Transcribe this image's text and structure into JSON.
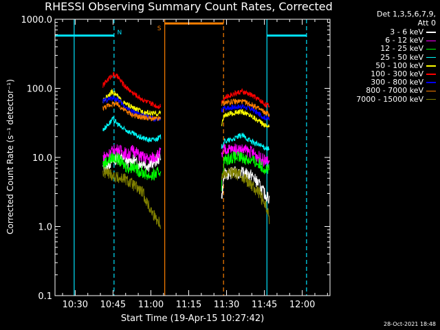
{
  "chart_data": {
    "type": "line",
    "title": "RHESSI Observing Summary Count Rates, Corrected",
    "xlabel": "Start Time (19-Apr-15 10:27:42)",
    "ylabel": "Corrected Count Rate (s⁻¹ detector⁻¹)",
    "y_scale": "log",
    "ylim": [
      0.1,
      1000
    ],
    "xlim_minutes": [
      622,
      731
    ],
    "x_ticks": [
      {
        "label": "10:30",
        "minute": 630
      },
      {
        "label": "10:45",
        "minute": 645
      },
      {
        "label": "11:00",
        "minute": 660
      },
      {
        "label": "11:15",
        "minute": 675
      },
      {
        "label": "11:30",
        "minute": 690
      },
      {
        "label": "11:45",
        "minute": 705
      },
      {
        "label": "12:00",
        "minute": 720
      }
    ],
    "y_ticks": [
      {
        "label": "1000.0",
        "value": 1000
      },
      {
        "label": "100.0",
        "value": 100
      },
      {
        "label": "10.0",
        "value": 10
      },
      {
        "label": "1.0",
        "value": 1
      },
      {
        "label": "0.1",
        "value": 0.1
      }
    ],
    "legend_header": [
      "Det 1,3,5,6,7,9,",
      "Att 0"
    ],
    "annotations": [
      {
        "text": "N",
        "color": "#00e5ff"
      },
      {
        "text": "S",
        "color": "#ff8000"
      }
    ],
    "event_lines": [
      {
        "minute": 629.6,
        "color": "#00e5ff",
        "style": "solid"
      },
      {
        "minute": 645.4,
        "color": "#00e5ff",
        "style": "dashed"
      },
      {
        "minute": 665.5,
        "color": "#ff8000",
        "style": "solid"
      },
      {
        "minute": 688.8,
        "color": "#ff8000",
        "style": "dashed"
      },
      {
        "minute": 706.0,
        "color": "#00e5ff",
        "style": "solid"
      },
      {
        "minute": 721.7,
        "color": "#00e5ff",
        "style": "dashed"
      }
    ],
    "flag_bars": [
      {
        "start": 622,
        "end": 645.4,
        "value": 580,
        "color": "#00e5ff"
      },
      {
        "start": 706.0,
        "end": 721.7,
        "value": 580,
        "color": "#00e5ff"
      },
      {
        "start": 665.5,
        "end": 688.8,
        "value": 870,
        "color": "#ff8000"
      }
    ],
    "segments": [
      [
        641,
        664
      ],
      [
        688,
        707
      ]
    ],
    "series": [
      {
        "name": "3 - 6 keV",
        "color": "#ffffff",
        "points": [
          [
            641,
            7
          ],
          [
            643,
            8
          ],
          [
            645,
            9
          ],
          [
            647,
            10
          ],
          [
            649,
            9.5
          ],
          [
            651,
            8.5
          ],
          [
            653,
            9
          ],
          [
            655,
            8
          ],
          [
            657,
            8.5
          ],
          [
            659,
            7.5
          ],
          [
            661,
            8.5
          ],
          [
            663,
            9.5
          ],
          [
            664,
            11
          ],
          [
            688,
            2.5
          ],
          [
            689,
            5.5
          ],
          [
            692,
            6
          ],
          [
            696,
            6
          ],
          [
            700,
            5.5
          ],
          [
            703,
            4
          ],
          [
            705,
            3
          ],
          [
            707,
            2.5
          ]
        ]
      },
      {
        "name": "6 - 12 keV",
        "color": "#ff00ff",
        "points": [
          [
            641,
            10
          ],
          [
            643,
            11
          ],
          [
            645,
            12.5
          ],
          [
            647,
            13
          ],
          [
            649,
            12
          ],
          [
            651,
            11
          ],
          [
            653,
            13
          ],
          [
            655,
            11
          ],
          [
            657,
            10
          ],
          [
            659,
            9.5
          ],
          [
            661,
            10
          ],
          [
            663,
            11
          ],
          [
            664,
            12
          ],
          [
            688,
            10
          ],
          [
            689,
            13
          ],
          [
            692,
            13
          ],
          [
            696,
            13
          ],
          [
            700,
            12
          ],
          [
            703,
            10
          ],
          [
            705,
            9
          ],
          [
            707,
            8.5
          ]
        ]
      },
      {
        "name": "12 - 25 keV",
        "color": "#00ff00",
        "points": [
          [
            641,
            8
          ],
          [
            643,
            9
          ],
          [
            645,
            10
          ],
          [
            647,
            9.5
          ],
          [
            649,
            8
          ],
          [
            651,
            7
          ],
          [
            653,
            7.5
          ],
          [
            655,
            6.5
          ],
          [
            657,
            6
          ],
          [
            659,
            5.5
          ],
          [
            661,
            5.5
          ],
          [
            663,
            6
          ],
          [
            664,
            6.5
          ],
          [
            688,
            4
          ],
          [
            689,
            9
          ],
          [
            692,
            10
          ],
          [
            696,
            10
          ],
          [
            700,
            9
          ],
          [
            703,
            8
          ],
          [
            705,
            7
          ],
          [
            707,
            6.5
          ]
        ]
      },
      {
        "name": "25 - 50 keV",
        "color": "#00ffff",
        "points": [
          [
            641,
            25
          ],
          [
            643,
            30
          ],
          [
            645,
            36
          ],
          [
            647,
            30
          ],
          [
            649,
            26
          ],
          [
            651,
            24
          ],
          [
            653,
            22
          ],
          [
            655,
            20
          ],
          [
            657,
            19
          ],
          [
            659,
            18
          ],
          [
            661,
            18
          ],
          [
            663,
            19
          ],
          [
            664,
            20
          ],
          [
            688,
            14
          ],
          [
            689,
            17
          ],
          [
            692,
            18
          ],
          [
            696,
            21
          ],
          [
            700,
            17
          ],
          [
            703,
            15
          ],
          [
            705,
            14
          ],
          [
            707,
            13
          ]
        ]
      },
      {
        "name": "50 - 100 keV",
        "color": "#ffff00",
        "points": [
          [
            641,
            65
          ],
          [
            643,
            80
          ],
          [
            645,
            90
          ],
          [
            647,
            75
          ],
          [
            649,
            62
          ],
          [
            651,
            57
          ],
          [
            653,
            52
          ],
          [
            655,
            48
          ],
          [
            657,
            46
          ],
          [
            659,
            44
          ],
          [
            661,
            43
          ],
          [
            663,
            43
          ],
          [
            664,
            45
          ],
          [
            688,
            30
          ],
          [
            689,
            40
          ],
          [
            692,
            43
          ],
          [
            696,
            46
          ],
          [
            700,
            40
          ],
          [
            703,
            33
          ],
          [
            705,
            30
          ],
          [
            707,
            28
          ]
        ]
      },
      {
        "name": "100 - 300 keV",
        "color": "#ff0000",
        "points": [
          [
            641,
            110
          ],
          [
            643,
            135
          ],
          [
            645,
            160
          ],
          [
            647,
            145
          ],
          [
            649,
            115
          ],
          [
            651,
            98
          ],
          [
            653,
            85
          ],
          [
            655,
            76
          ],
          [
            657,
            68
          ],
          [
            659,
            62
          ],
          [
            661,
            58
          ],
          [
            663,
            55
          ],
          [
            664,
            57
          ],
          [
            688,
            63
          ],
          [
            689,
            72
          ],
          [
            692,
            82
          ],
          [
            696,
            90
          ],
          [
            700,
            80
          ],
          [
            703,
            68
          ],
          [
            705,
            60
          ],
          [
            707,
            55
          ]
        ]
      },
      {
        "name": "300 - 800 keV",
        "color": "#0000ff",
        "points": [
          [
            641,
            65
          ],
          [
            643,
            70
          ],
          [
            645,
            72
          ],
          [
            647,
            68
          ],
          [
            649,
            58
          ],
          [
            651,
            50
          ],
          [
            653,
            45
          ],
          [
            655,
            42
          ],
          [
            657,
            40
          ],
          [
            659,
            38
          ],
          [
            661,
            36
          ],
          [
            663,
            35
          ],
          [
            664,
            36
          ],
          [
            688,
            48
          ],
          [
            689,
            52
          ],
          [
            692,
            53
          ],
          [
            696,
            55
          ],
          [
            700,
            50
          ],
          [
            703,
            42
          ],
          [
            705,
            38
          ],
          [
            707,
            36
          ]
        ]
      },
      {
        "name": "800 - 7000 keV",
        "color": "#ff8000",
        "points": [
          [
            641,
            52
          ],
          [
            643,
            56
          ],
          [
            645,
            60
          ],
          [
            647,
            58
          ],
          [
            649,
            50
          ],
          [
            651,
            45
          ],
          [
            653,
            41
          ],
          [
            655,
            39
          ],
          [
            657,
            38
          ],
          [
            659,
            37
          ],
          [
            661,
            36
          ],
          [
            663,
            36
          ],
          [
            664,
            37
          ],
          [
            688,
            60
          ],
          [
            689,
            62
          ],
          [
            692,
            64
          ],
          [
            696,
            65
          ],
          [
            700,
            58
          ],
          [
            703,
            50
          ],
          [
            705,
            45
          ],
          [
            707,
            42
          ]
        ]
      },
      {
        "name": "7000 - 15000 keV",
        "color": "#808000",
        "points": [
          [
            641,
            6
          ],
          [
            643,
            6
          ],
          [
            645,
            5.5
          ],
          [
            647,
            5
          ],
          [
            649,
            5
          ],
          [
            651,
            4.5
          ],
          [
            653,
            4
          ],
          [
            655,
            3.5
          ],
          [
            657,
            3
          ],
          [
            659,
            2
          ],
          [
            661,
            1.5
          ],
          [
            663,
            1.2
          ],
          [
            664,
            1.1
          ],
          [
            688,
            5
          ],
          [
            689,
            6
          ],
          [
            692,
            6
          ],
          [
            696,
            5.5
          ],
          [
            700,
            4
          ],
          [
            703,
            3
          ],
          [
            705,
            2.2
          ],
          [
            707,
            1.3
          ]
        ]
      }
    ],
    "grid": false,
    "legend_position": "right"
  },
  "footer": {
    "timestamp": "28-Oct-2021 18:48"
  }
}
